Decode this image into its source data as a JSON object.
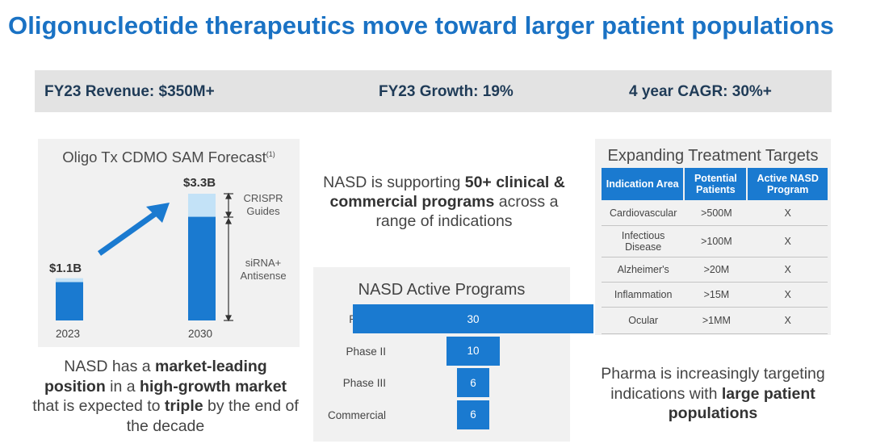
{
  "title": "Oligonucleotide therapeutics move toward larger patient populations",
  "kpis": {
    "revenue": "FY23 Revenue: $350M+",
    "growth": "FY23 Growth: 19%",
    "cagr": "4 year CAGR: 30%+"
  },
  "sam_forecast": {
    "title": "Oligo Tx CDMO SAM Forecast",
    "footnote": "(1)",
    "bars": [
      {
        "year": "2023",
        "label": "$1.1B",
        "value": 1.1,
        "sirna": 1.0,
        "crispr": 0.1
      },
      {
        "year": "2030",
        "label": "$3.3B",
        "value": 3.3,
        "sirna": 2.7,
        "crispr": 0.6
      }
    ],
    "segments": {
      "crispr": "CRISPR Guides",
      "sirna": "siRNA+ Antisense"
    },
    "colors": {
      "sirna": "#1a7ad0",
      "crispr": "#c3e2f7",
      "arrow": "#1a7ad0"
    }
  },
  "center_message": {
    "pre": "NASD is supporting ",
    "bold": "50+ clinical & commercial programs",
    "post": " across a range of indications"
  },
  "chart_data": {
    "type": "bar",
    "title": "NASD Active Programs",
    "categories": [
      "Phase I",
      "Phase II",
      "Phase III",
      "Commercial"
    ],
    "values": [
      30,
      10,
      6,
      6
    ],
    "orientation": "horizontal-funnel"
  },
  "treatment_targets": {
    "title": "Expanding Treatment Targets",
    "headers": [
      "Indication Area",
      "Potential Patients",
      "Active NASD Program"
    ],
    "rows": [
      [
        "Cardiovascular",
        ">500M",
        "X"
      ],
      [
        "Infectious Disease",
        ">100M",
        "X"
      ],
      [
        "Alzheimer's",
        ">20M",
        "X"
      ],
      [
        "Inflammation",
        ">15M",
        "X"
      ],
      [
        "Ocular",
        ">1MM",
        "X"
      ]
    ]
  },
  "bottom_left": {
    "t1": "NASD has a ",
    "b1": "market-leading position",
    "t2": " in a ",
    "b2": "high-growth market",
    "t3": " that is expected to ",
    "b3": "triple",
    "t4": " by the end of the decade"
  },
  "bottom_right": {
    "t1": "Pharma is increasingly targeting indications with ",
    "b1": "large patient populations"
  }
}
